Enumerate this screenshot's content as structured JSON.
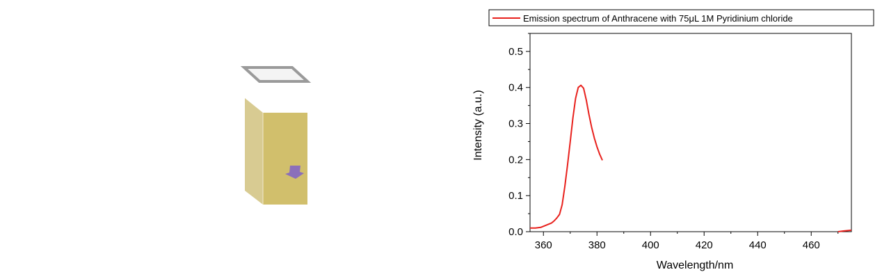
{
  "colors": {
    "series": "#e8201c",
    "cuvette_front": "#d1bf6c",
    "cuvette_side": "#d8cb92",
    "cuvette_rim": "#9a9a9a",
    "sample": "#8b6fba"
  },
  "illustration": {
    "icon": "cuvette-icon",
    "sample_icon": "arrow-icon"
  },
  "chart_data": {
    "type": "line",
    "xlabel": "Wavelength/nm",
    "ylabel": "Intensity (a.u.)",
    "xlim": [
      355,
      475
    ],
    "ylim": [
      0,
      0.55
    ],
    "xticks": [
      360,
      380,
      400,
      420,
      440,
      460
    ],
    "xtick_labels": [
      "360",
      "380",
      "400",
      "420",
      "440",
      "460"
    ],
    "yticks": [
      0.0,
      0.1,
      0.2,
      0.3,
      0.4,
      0.5
    ],
    "ytick_labels": [
      "0.0",
      "0.1",
      "0.2",
      "0.3",
      "0.4",
      "0.5"
    ],
    "legend": {
      "position": "top",
      "entries": [
        "Emission spectrum of Anthracene with 75μL 1M Pyridinium chloride"
      ]
    },
    "series": [
      {
        "name": "Emission spectrum of Anthracene with 75μL 1M Pyridinium chloride",
        "segments": [
          {
            "x": [
              355,
              357,
              359,
              361,
              363,
              364,
              365,
              366,
              367,
              368,
              369,
              370,
              371,
              372,
              373,
              374,
              375,
              376,
              377,
              378,
              379,
              380,
              381,
              382
            ],
            "y": [
              0.01,
              0.01,
              0.012,
              0.018,
              0.024,
              0.03,
              0.038,
              0.048,
              0.075,
              0.125,
              0.185,
              0.25,
              0.315,
              0.37,
              0.4,
              0.406,
              0.398,
              0.365,
              0.325,
              0.29,
              0.26,
              0.235,
              0.215,
              0.198
            ]
          },
          {
            "x": [
              470,
              472,
              475
            ],
            "y": [
              0.0,
              0.002,
              0.004
            ]
          }
        ]
      }
    ]
  }
}
